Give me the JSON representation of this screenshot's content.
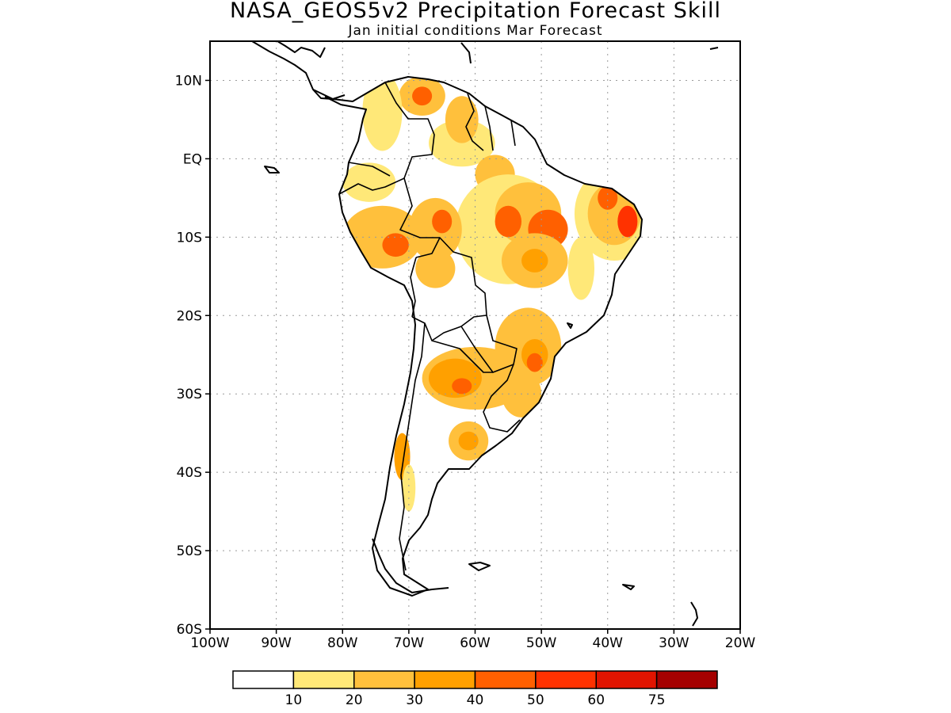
{
  "title": "NASA_GEOS5v2 Precipitation Forecast Skill",
  "subtitle": "Jan initial conditions  Mar Forecast",
  "map": {
    "lon_range": [
      -100,
      -20
    ],
    "lat_range": [
      -60,
      15
    ],
    "lon_ticks": [
      -100,
      -90,
      -80,
      -70,
      -60,
      -50,
      -40,
      -30,
      -20
    ],
    "lon_tick_labels": [
      "100W",
      "90W",
      "80W",
      "70W",
      "60W",
      "50W",
      "40W",
      "30W",
      "20W"
    ],
    "lat_ticks": [
      10,
      0,
      -10,
      -20,
      -30,
      -40,
      -50,
      -60
    ],
    "lat_tick_labels": [
      "10N",
      "EQ",
      "10S",
      "20S",
      "30S",
      "40S",
      "50S",
      "60S"
    ],
    "grid": "dotted"
  },
  "colorbar": {
    "levels": [
      "10",
      "20",
      "30",
      "40",
      "50",
      "60",
      "75"
    ],
    "colors": [
      "#ffffff",
      "#ffe878",
      "#ffc03c",
      "#ffa000",
      "#ff6000",
      "#ff3200",
      "#e11400",
      "#a50000"
    ]
  },
  "skill_regions": [
    {
      "lon": -62,
      "lat": 2,
      "rx": 5,
      "ry": 3,
      "level": 1
    },
    {
      "lon": -57,
      "lat": -2,
      "rx": 3,
      "ry": 2.5,
      "level": 2
    },
    {
      "lon": -55,
      "lat": -9,
      "rx": 8,
      "ry": 7,
      "level": 1
    },
    {
      "lon": -52,
      "lat": -7,
      "rx": 5,
      "ry": 4,
      "level": 2
    },
    {
      "lon": -55,
      "lat": -8,
      "rx": 2,
      "ry": 2,
      "level": 4
    },
    {
      "lon": -49,
      "lat": -9,
      "rx": 3,
      "ry": 2.5,
      "level": 4
    },
    {
      "lon": -51,
      "lat": -13,
      "rx": 5,
      "ry": 3.5,
      "level": 2
    },
    {
      "lon": -51,
      "lat": -13,
      "rx": 2,
      "ry": 1.5,
      "level": 3
    },
    {
      "lon": -39,
      "lat": -7,
      "rx": 6,
      "ry": 6,
      "level": 1
    },
    {
      "lon": -39,
      "lat": -7,
      "rx": 4,
      "ry": 4,
      "level": 2
    },
    {
      "lon": -40,
      "lat": -5,
      "rx": 1.5,
      "ry": 1.5,
      "level": 4
    },
    {
      "lon": -37,
      "lat": -8,
      "rx": 1.5,
      "ry": 2,
      "level": 5
    },
    {
      "lon": -44,
      "lat": -14,
      "rx": 2,
      "ry": 4,
      "level": 1
    },
    {
      "lon": -68,
      "lat": 8,
      "rx": 3.5,
      "ry": 2.5,
      "level": 2
    },
    {
      "lon": -68,
      "lat": 8,
      "rx": 1.5,
      "ry": 1.2,
      "level": 4
    },
    {
      "lon": -74,
      "lat": 6,
      "rx": 3,
      "ry": 5,
      "level": 1
    },
    {
      "lon": -62,
      "lat": 5,
      "rx": 2.5,
      "ry": 3,
      "level": 2
    },
    {
      "lon": -76,
      "lat": -3,
      "rx": 4,
      "ry": 2.5,
      "level": 1
    },
    {
      "lon": -74,
      "lat": -10,
      "rx": 6,
      "ry": 4,
      "level": 2
    },
    {
      "lon": -72,
      "lat": -11,
      "rx": 2,
      "ry": 1.5,
      "level": 4
    },
    {
      "lon": -66,
      "lat": -9,
      "rx": 4,
      "ry": 4,
      "level": 2
    },
    {
      "lon": -65,
      "lat": -8,
      "rx": 1.5,
      "ry": 1.5,
      "level": 4
    },
    {
      "lon": -66,
      "lat": -14,
      "rx": 3,
      "ry": 2.5,
      "level": 2
    },
    {
      "lon": -60,
      "lat": -28,
      "rx": 8,
      "ry": 4,
      "level": 2
    },
    {
      "lon": -63,
      "lat": -28,
      "rx": 4,
      "ry": 2.5,
      "level": 3
    },
    {
      "lon": -62,
      "lat": -29,
      "rx": 1.5,
      "ry": 1,
      "level": 4
    },
    {
      "lon": -52,
      "lat": -24,
      "rx": 5,
      "ry": 5,
      "level": 2
    },
    {
      "lon": -51,
      "lat": -25,
      "rx": 2,
      "ry": 2,
      "level": 3
    },
    {
      "lon": -51,
      "lat": -26,
      "rx": 1.2,
      "ry": 1.2,
      "level": 4
    },
    {
      "lon": -53,
      "lat": -30,
      "rx": 3,
      "ry": 3,
      "level": 2
    },
    {
      "lon": -61,
      "lat": -36,
      "rx": 3,
      "ry": 2.5,
      "level": 2
    },
    {
      "lon": -61,
      "lat": -36,
      "rx": 1.5,
      "ry": 1.2,
      "level": 3
    },
    {
      "lon": -71,
      "lat": -38,
      "rx": 1.2,
      "ry": 3,
      "level": 3
    },
    {
      "lon": -70,
      "lat": -42,
      "rx": 1,
      "ry": 3,
      "level": 1
    }
  ]
}
